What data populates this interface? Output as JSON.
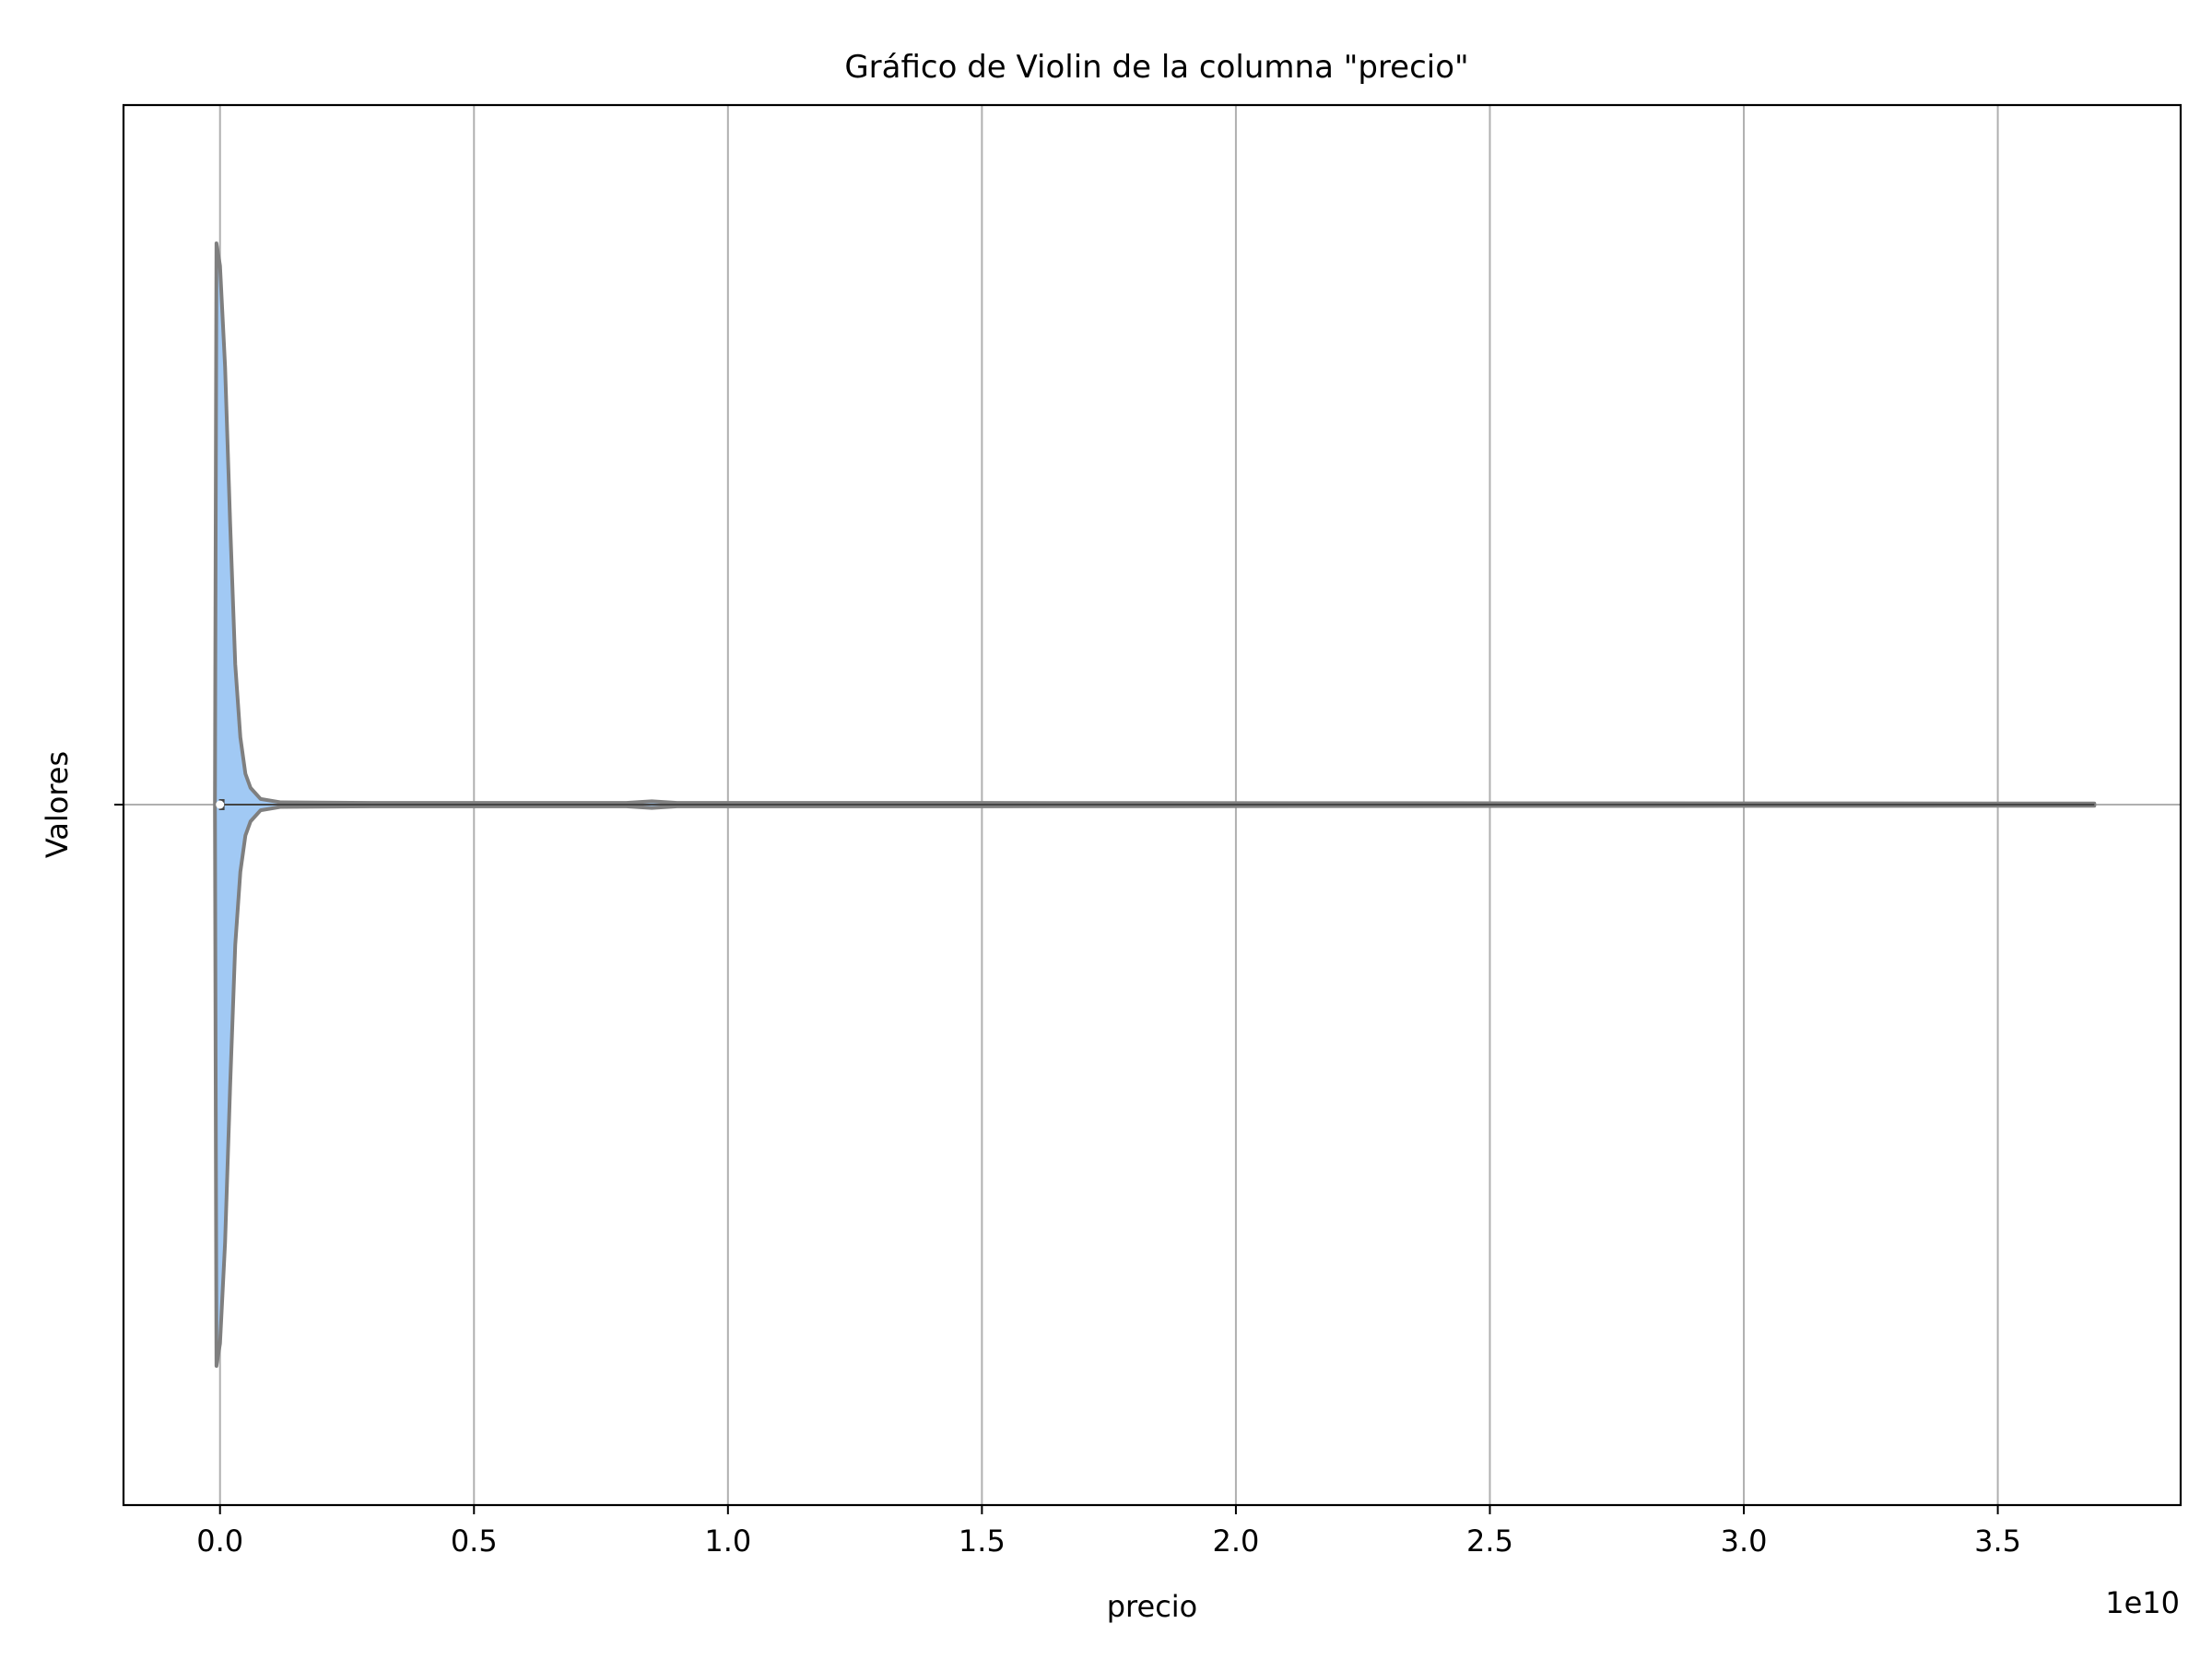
{
  "chart_data": {
    "type": "violin",
    "orientation": "horizontal",
    "title": "Gráfico de Violin de la columna \"precio\"",
    "xlabel": "precio",
    "ylabel": "Valores",
    "x_offset_label": "1e10",
    "x_ticks": [
      0.0,
      0.5,
      1.0,
      1.5,
      2.0,
      2.5,
      3.0,
      3.5
    ],
    "x_tick_labels": [
      "0.0",
      "0.5",
      "1.0",
      "1.5",
      "2.0",
      "2.5",
      "3.0",
      "3.5"
    ],
    "x_scale": 10000000000,
    "xlim": [
      -0.19,
      3.86
    ],
    "y_categories": [
      ""
    ],
    "grid": true,
    "series": [
      {
        "column": "precio",
        "min": -0.005,
        "max": 3.69,
        "median": 0.0,
        "q1": -0.002,
        "q3": 0.003,
        "profile": [
          [
            -0.01,
            0.0
          ],
          [
            -0.007,
            1.0
          ],
          [
            0.0,
            0.96
          ],
          [
            0.01,
            0.78
          ],
          [
            0.02,
            0.5
          ],
          [
            0.03,
            0.25
          ],
          [
            0.04,
            0.12
          ],
          [
            0.05,
            0.055
          ],
          [
            0.06,
            0.03
          ],
          [
            0.08,
            0.01
          ],
          [
            0.12,
            0.004
          ],
          [
            0.3,
            0.003
          ],
          [
            0.8,
            0.003
          ],
          [
            0.85,
            0.006
          ],
          [
            0.9,
            0.003
          ],
          [
            1.5,
            0.003
          ],
          [
            3.69,
            0.002
          ]
        ]
      }
    ],
    "colors": {
      "violin_fill": "#a1c9f4",
      "violin_edge": "#7f7f7f",
      "grid": "#b0b0b0",
      "axes": "#000000",
      "box": "#444444",
      "median": "#ffffff"
    }
  }
}
